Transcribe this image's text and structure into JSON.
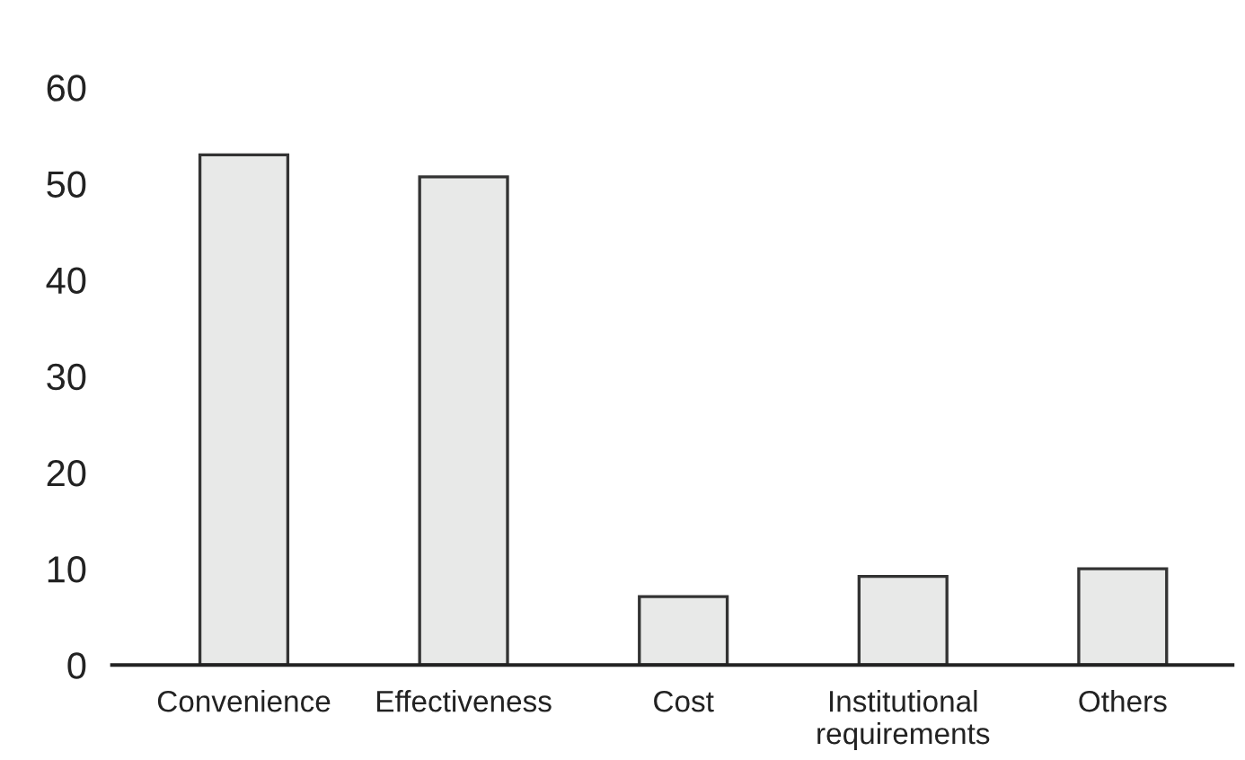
{
  "chart_data": {
    "type": "bar",
    "categories": [
      "Convenience",
      "Effectiveness",
      "Cost",
      "Institutional\nrequirements",
      "Others"
    ],
    "values": [
      53,
      50.7,
      7.1,
      9.2,
      10
    ],
    "color": "#e8e9e8",
    "ylim": [
      0,
      60
    ],
    "yticks": [
      0,
      10,
      20,
      30,
      40,
      50,
      60
    ],
    "grid": false
  }
}
